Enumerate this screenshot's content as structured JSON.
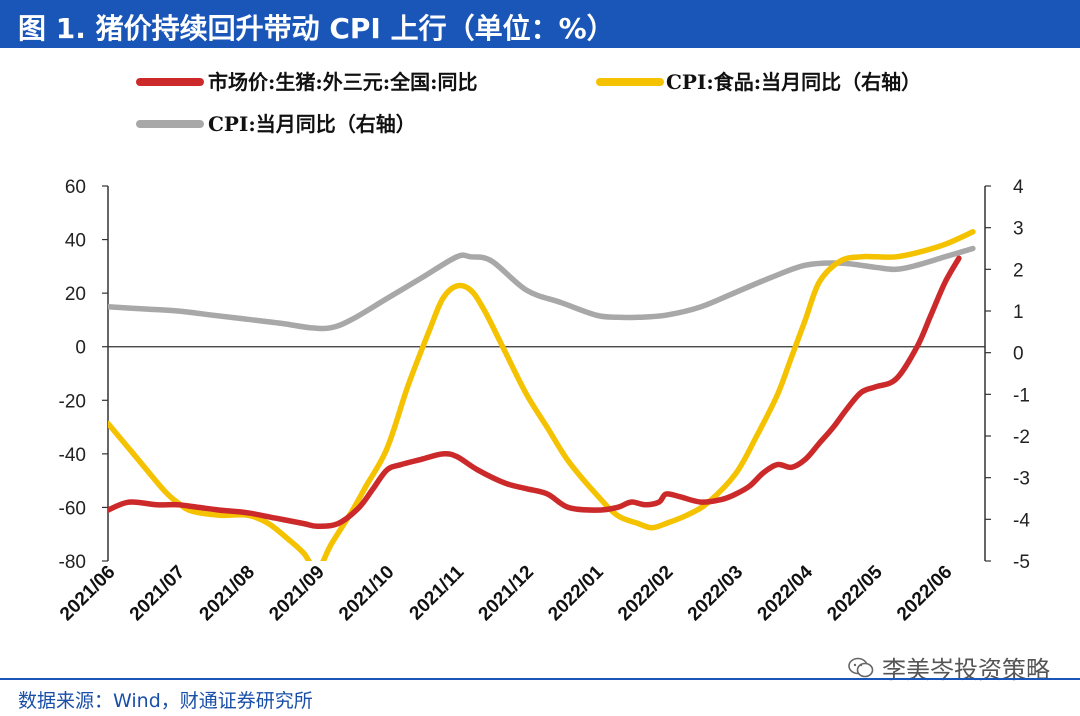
{
  "title": "图 1. 猪价持续回升带动 CPI 上行（单位：%）",
  "source": "数据来源：Wind，财通证券研究所",
  "watermark": "李美岑投资策略",
  "colors": {
    "title_bg": "#1a56b8",
    "pork": "#cc2a2a",
    "food": "#f5c200",
    "cpi": "#a8a8a8",
    "source_text": "#1a4fa8"
  },
  "chart_data": {
    "type": "line",
    "categories": [
      "2021/06",
      "2021/07",
      "2021/08",
      "2021/09",
      "2021/10",
      "2021/11",
      "2021/12",
      "2022/01",
      "2022/02",
      "2022/03",
      "2022/04",
      "2022/05",
      "2022/06"
    ],
    "y_left": {
      "min": -80,
      "max": 60,
      "ticks": [
        -80,
        -60,
        -40,
        -20,
        0,
        20,
        40,
        60
      ]
    },
    "y_right": {
      "min": -5,
      "max": 4,
      "ticks": [
        -5,
        -4,
        -3,
        -2,
        -1,
        0,
        1,
        2,
        3,
        4
      ]
    },
    "legend_position": "top-left",
    "grid": false,
    "series": [
      {
        "name": "市场价:生猪:外三元:全国:同比",
        "axis": "left",
        "color_key": "pork",
        "x": [
          0,
          0.3,
          0.7,
          1.0,
          1.3,
          1.6,
          2.0,
          2.4,
          2.8,
          3.0,
          3.3,
          3.6,
          3.8,
          4.0,
          4.2,
          4.5,
          4.8,
          5.0,
          5.3,
          5.7,
          6.0,
          6.3,
          6.6,
          7.0,
          7.3,
          7.5,
          7.7,
          7.9,
          8.0,
          8.2,
          8.5,
          8.8,
          9.0,
          9.2,
          9.4,
          9.6,
          9.8,
          10.0,
          10.2,
          10.4,
          10.6,
          10.8,
          11.0,
          11.3,
          11.6,
          11.8,
          12.0,
          12.2
        ],
        "y": [
          -61,
          -58,
          -59,
          -59,
          -60,
          -61,
          -62,
          -64,
          -66,
          -67,
          -66,
          -60,
          -53,
          -46,
          -44,
          -42,
          -40,
          -41,
          -46,
          -51,
          -53,
          -55,
          -60,
          -61,
          -60,
          -58,
          -59,
          -58,
          -55,
          -56,
          -58,
          -57,
          -55,
          -52,
          -47,
          -44,
          -45,
          -42,
          -36,
          -30,
          -23,
          -17,
          -15,
          -12,
          0,
          12,
          24,
          33
        ]
      },
      {
        "name": "CPI:食品:当月同比（右轴）",
        "axis": "right",
        "color_key": "food",
        "x": [
          0,
          0.4,
          0.8,
          1.0,
          1.2,
          1.6,
          2.0,
          2.3,
          2.6,
          2.8,
          3.0,
          3.2,
          3.5,
          3.7,
          4.0,
          4.3,
          4.6,
          4.8,
          5.0,
          5.2,
          5.4,
          5.7,
          6.0,
          6.3,
          6.6,
          7.0,
          7.3,
          7.6,
          7.8,
          8.0,
          8.3,
          8.6,
          9.0,
          9.3,
          9.6,
          9.8,
          10.0,
          10.2,
          10.5,
          10.8,
          11.0,
          11.3,
          11.6,
          12.0,
          12.4
        ],
        "y": [
          -1.7,
          -2.5,
          -3.3,
          -3.6,
          -3.8,
          -3.9,
          -3.9,
          -4.1,
          -4.5,
          -4.8,
          -5.2,
          -4.6,
          -3.8,
          -3.2,
          -2.3,
          -0.8,
          0.5,
          1.3,
          1.6,
          1.5,
          1.0,
          0.0,
          -1.0,
          -1.8,
          -2.6,
          -3.4,
          -3.9,
          -4.1,
          -4.2,
          -4.1,
          -3.9,
          -3.6,
          -2.9,
          -2.0,
          -1.0,
          -0.1,
          0.8,
          1.7,
          2.2,
          2.3,
          2.3,
          2.3,
          2.4,
          2.6,
          2.9
        ]
      },
      {
        "name": "CPI:当月同比（右轴）",
        "axis": "right",
        "color_key": "cpi",
        "x": [
          0,
          0.5,
          1.0,
          1.5,
          2.0,
          2.5,
          2.9,
          3.2,
          3.5,
          4.0,
          4.5,
          5.0,
          5.2,
          5.5,
          6.0,
          6.5,
          7.0,
          7.3,
          7.6,
          8.0,
          8.5,
          9.0,
          9.5,
          10.0,
          10.5,
          11.0,
          11.3,
          11.6,
          12.0,
          12.4
        ],
        "y": [
          1.1,
          1.05,
          1.0,
          0.9,
          0.8,
          0.7,
          0.6,
          0.6,
          0.8,
          1.3,
          1.8,
          2.3,
          2.3,
          2.2,
          1.5,
          1.2,
          0.9,
          0.85,
          0.85,
          0.9,
          1.1,
          1.45,
          1.8,
          2.1,
          2.15,
          2.05,
          2.0,
          2.1,
          2.3,
          2.5
        ]
      }
    ]
  }
}
